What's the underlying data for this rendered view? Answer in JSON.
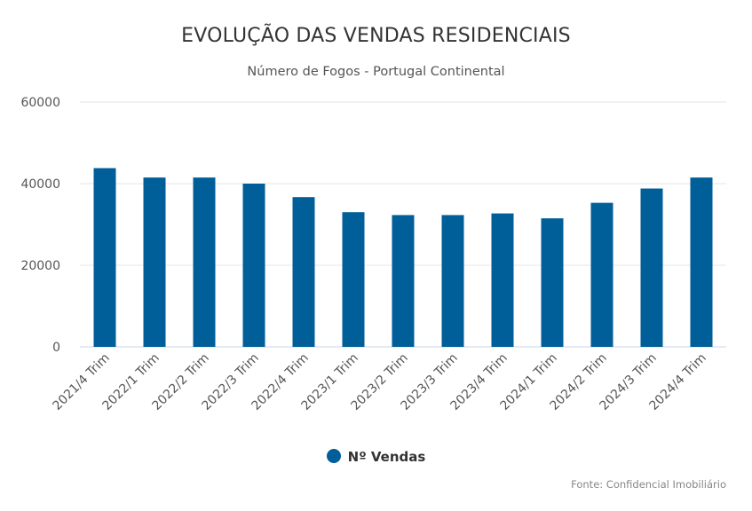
{
  "chart_data": {
    "type": "bar",
    "title": "EVOLUÇÃO DAS VENDAS RESIDENCIAIS",
    "subtitle": "Número de Fogos - Portugal Continental",
    "categories": [
      "2021/4 Trim",
      "2022/1 Trim",
      "2022/2 Trim",
      "2022/3 Trim",
      "2022/4 Trim",
      "2023/1 Trim",
      "2023/2 Trim",
      "2023/3 Trim",
      "2023/4 Trim",
      "2024/1 Trim",
      "2024/2 Trim",
      "2024/3 Trim",
      "2024/4 Trim"
    ],
    "series": [
      {
        "name": "Nº Vendas",
        "color": "#005e99",
        "values": [
          43800,
          41500,
          41500,
          40000,
          36700,
          33000,
          32300,
          32300,
          32700,
          31500,
          35300,
          38800,
          41500
        ]
      }
    ],
    "ylim": [
      0,
      60000
    ],
    "yticks": [
      0,
      20000,
      40000,
      60000
    ],
    "grid": true,
    "legend_position": "bottom-center",
    "credit": "Fonte: Confidencial Imobiliário"
  }
}
